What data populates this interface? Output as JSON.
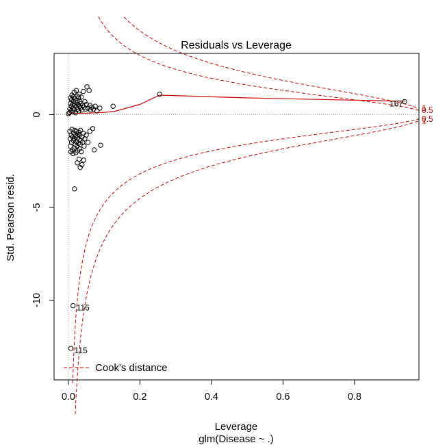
{
  "chart_data": {
    "type": "scatter",
    "title": "Residuals vs Leverage",
    "xlabel": "Leverage",
    "sublabel": "glm(Disease ~ .)",
    "ylabel": "Std. Pearson resid.",
    "xlim": [
      -0.04,
      0.98
    ],
    "ylim": [
      -14.3,
      3.3
    ],
    "x_ticks": [
      0.0,
      0.2,
      0.4,
      0.6,
      0.8
    ],
    "x_tick_labels": [
      "0.0",
      "0.2",
      "0.4",
      "0.6",
      "0.8"
    ],
    "y_ticks": [
      -10,
      -5,
      0
    ],
    "y_tick_labels": [
      "-10",
      "-5",
      "0"
    ],
    "reference_lines": {
      "h": 0,
      "v": 0
    },
    "legend": {
      "position": "bottom-left",
      "label": "Cook's distance"
    },
    "cooks_contours": [
      {
        "level": 0.5,
        "label": "0.5"
      },
      {
        "level": 1,
        "label": "1"
      }
    ],
    "labeled_points": [
      {
        "label": "167",
        "x": 0.94,
        "y": 0.7
      },
      {
        "label": "116",
        "x": 0.013,
        "y": -10.3
      },
      {
        "label": "115",
        "x": 0.007,
        "y": -12.6
      }
    ],
    "smooth_line": [
      [
        0.0,
        0.02
      ],
      [
        0.02,
        0.07
      ],
      [
        0.05,
        0.07
      ],
      [
        0.1,
        0.12
      ],
      [
        0.13,
        0.18
      ],
      [
        0.2,
        0.55
      ],
      [
        0.255,
        1.05
      ],
      [
        0.5,
        0.9
      ],
      [
        0.75,
        0.8
      ],
      [
        0.94,
        0.72
      ]
    ],
    "points": [
      [
        0.0,
        0.05
      ],
      [
        0.003,
        0.1
      ],
      [
        0.004,
        0.3
      ],
      [
        0.006,
        0.6
      ],
      [
        0.006,
        0.9
      ],
      [
        0.007,
        0.2
      ],
      [
        0.008,
        0.45
      ],
      [
        0.009,
        0.8
      ],
      [
        0.01,
        1.05
      ],
      [
        0.011,
        0.15
      ],
      [
        0.012,
        0.55
      ],
      [
        0.013,
        0.35
      ],
      [
        0.014,
        0.95
      ],
      [
        0.015,
        0.7
      ],
      [
        0.016,
        1.2
      ],
      [
        0.017,
        0.25
      ],
      [
        0.018,
        0.5
      ],
      [
        0.019,
        0.85
      ],
      [
        0.02,
        0.1
      ],
      [
        0.021,
        0.65
      ],
      [
        0.022,
        1.3
      ],
      [
        0.023,
        0.4
      ],
      [
        0.024,
        0.75
      ],
      [
        0.025,
        1.0
      ],
      [
        0.026,
        0.3
      ],
      [
        0.027,
        0.55
      ],
      [
        0.028,
        0.9
      ],
      [
        0.029,
        0.2
      ],
      [
        0.03,
        1.1
      ],
      [
        0.031,
        0.45
      ],
      [
        0.032,
        0.7
      ],
      [
        0.034,
        0.35
      ],
      [
        0.035,
        0.6
      ],
      [
        0.036,
        0.95
      ],
      [
        0.038,
        0.25
      ],
      [
        0.04,
        0.5
      ],
      [
        0.042,
        1.25
      ],
      [
        0.044,
        0.4
      ],
      [
        0.046,
        0.7
      ],
      [
        0.048,
        0.3
      ],
      [
        0.05,
        0.55
      ],
      [
        0.052,
        1.5
      ],
      [
        0.055,
        0.35
      ],
      [
        0.058,
        1.3
      ],
      [
        0.06,
        0.5
      ],
      [
        0.062,
        0.25
      ],
      [
        0.065,
        0.4
      ],
      [
        0.07,
        0.3
      ],
      [
        0.075,
        0.45
      ],
      [
        0.08,
        0.2
      ],
      [
        0.088,
        0.35
      ],
      [
        0.125,
        0.45
      ],
      [
        0.255,
        1.1
      ],
      [
        0.94,
        0.7
      ],
      [
        0.004,
        -0.9
      ],
      [
        0.005,
        -1.3
      ],
      [
        0.006,
        -1.7
      ],
      [
        0.007,
        -2.0
      ],
      [
        0.008,
        -1.1
      ],
      [
        0.009,
        -1.5
      ],
      [
        0.01,
        -0.8
      ],
      [
        0.011,
        -1.9
      ],
      [
        0.012,
        -1.2
      ],
      [
        0.013,
        -2.1
      ],
      [
        0.014,
        -1.4
      ],
      [
        0.015,
        -1.0
      ],
      [
        0.016,
        -1.8
      ],
      [
        0.017,
        -1.3
      ],
      [
        0.018,
        -0.85
      ],
      [
        0.019,
        -1.6
      ],
      [
        0.02,
        -1.15
      ],
      [
        0.021,
        -2.05
      ],
      [
        0.022,
        -1.45
      ],
      [
        0.023,
        -0.9
      ],
      [
        0.024,
        -1.7
      ],
      [
        0.025,
        -1.25
      ],
      [
        0.026,
        -1.95
      ],
      [
        0.027,
        -1.05
      ],
      [
        0.028,
        -1.55
      ],
      [
        0.029,
        -0.95
      ],
      [
        0.03,
        -1.35
      ],
      [
        0.031,
        -1.85
      ],
      [
        0.032,
        -1.1
      ],
      [
        0.033,
        -1.6
      ],
      [
        0.034,
        -0.85
      ],
      [
        0.035,
        -1.4
      ],
      [
        0.036,
        -2.0
      ],
      [
        0.038,
        -1.2
      ],
      [
        0.04,
        -1.5
      ],
      [
        0.042,
        -1.0
      ],
      [
        0.044,
        -1.7
      ],
      [
        0.046,
        -1.3
      ],
      [
        0.05,
        -1.1
      ],
      [
        0.055,
        -1.5
      ],
      [
        0.06,
        -0.9
      ],
      [
        0.068,
        -0.75
      ],
      [
        0.072,
        -1.9
      ],
      [
        0.09,
        -1.65
      ],
      [
        0.025,
        -2.6
      ],
      [
        0.03,
        -2.4
      ],
      [
        0.033,
        -2.85
      ],
      [
        0.038,
        -2.7
      ],
      [
        0.043,
        -2.45
      ],
      [
        0.017,
        -4.0
      ],
      [
        0.013,
        -10.3
      ],
      [
        0.007,
        -12.6
      ]
    ]
  }
}
